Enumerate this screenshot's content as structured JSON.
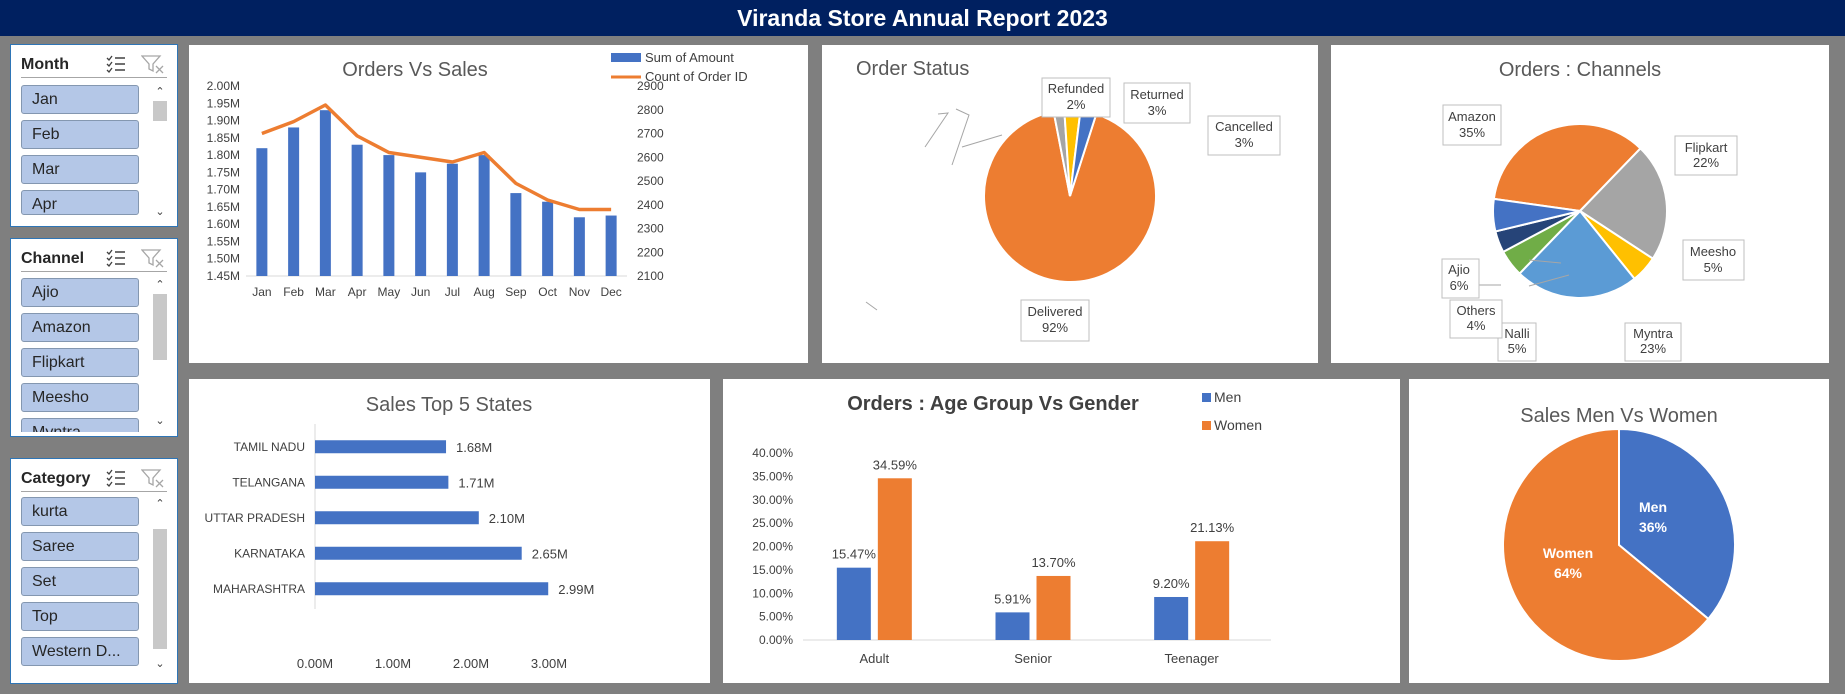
{
  "report_title": "Viranda Store Annual Report 2023",
  "slicers": {
    "month": {
      "label": "Month",
      "items": [
        "Jan",
        "Feb",
        "Mar",
        "Apr"
      ]
    },
    "channel": {
      "label": "Channel",
      "items": [
        "Ajio",
        "Amazon",
        "Flipkart",
        "Meesho",
        "Myntra"
      ]
    },
    "category": {
      "label": "Category",
      "items": [
        "kurta",
        "Saree",
        "Set",
        "Top",
        "Western D..."
      ]
    }
  },
  "colors": {
    "blue": "#4472c4",
    "orange": "#ed7d31",
    "gray": "#a5a5a5",
    "yellow": "#ffc000",
    "lightblue": "#5b9bd5",
    "green": "#70ad47",
    "navy": "#264478",
    "header": "#002060"
  },
  "chart_data": [
    {
      "id": "orders_vs_sales",
      "type": "bar+line",
      "title": "Orders Vs Sales",
      "categories": [
        "Jan",
        "Feb",
        "Mar",
        "Apr",
        "May",
        "Jun",
        "Jul",
        "Aug",
        "Sep",
        "Oct",
        "Nov",
        "Dec"
      ],
      "series": [
        {
          "name": "Sum of Amount",
          "axis": "left",
          "values": [
            1.82,
            1.88,
            1.93,
            1.83,
            1.8,
            1.75,
            1.775,
            1.8,
            1.69,
            1.665,
            1.62,
            1.625
          ]
        },
        {
          "name": "Count of Order ID",
          "axis": "right",
          "values": [
            2700,
            2750,
            2820,
            2690,
            2620,
            2600,
            2580,
            2620,
            2490,
            2420,
            2380,
            2380
          ]
        }
      ],
      "y_left": {
        "min": 1.45,
        "max": 2.0,
        "step": 0.05,
        "ticks": [
          "1.45M",
          "1.50M",
          "1.55M",
          "1.60M",
          "1.65M",
          "1.70M",
          "1.75M",
          "1.80M",
          "1.85M",
          "1.90M",
          "1.95M",
          "2.00M"
        ]
      },
      "y_right": {
        "min": 2100,
        "max": 2900,
        "step": 100,
        "ticks": [
          "2100",
          "2200",
          "2300",
          "2400",
          "2500",
          "2600",
          "2700",
          "2800",
          "2900"
        ]
      },
      "legend": "top-right"
    },
    {
      "id": "order_status",
      "type": "pie",
      "title": "Order Status",
      "slices": [
        {
          "name": "Delivered",
          "percent": 92,
          "label": "92%"
        },
        {
          "name": "Refunded",
          "percent": 2,
          "label": "2%"
        },
        {
          "name": "Returned",
          "percent": 3,
          "label": "3%"
        },
        {
          "name": "Cancelled",
          "percent": 3,
          "label": "3%"
        }
      ]
    },
    {
      "id": "orders_channels",
      "type": "pie",
      "title": "Orders : Channels",
      "slices": [
        {
          "name": "Amazon",
          "percent": 35,
          "label": "35%"
        },
        {
          "name": "Flipkart",
          "percent": 22,
          "label": "22%"
        },
        {
          "name": "Meesho",
          "percent": 5,
          "label": "5%"
        },
        {
          "name": "Myntra",
          "percent": 23,
          "label": "23%"
        },
        {
          "name": "Nalli",
          "percent": 5,
          "label": "5%"
        },
        {
          "name": "Others",
          "percent": 4,
          "label": "4%"
        },
        {
          "name": "Ajio",
          "percent": 6,
          "label": "6%"
        }
      ]
    },
    {
      "id": "sales_top5_states",
      "type": "bar",
      "orientation": "horizontal",
      "title": "Sales Top 5 States",
      "categories": [
        "TAMIL NADU",
        "TELANGANA",
        "UTTAR PRADESH",
        "KARNATAKA",
        "MAHARASHTRA"
      ],
      "values": [
        1.68,
        1.71,
        2.1,
        2.65,
        2.99
      ],
      "data_labels": [
        "1.68M",
        "1.71M",
        "2.10M",
        "2.65M",
        "2.99M"
      ],
      "xlim": [
        0,
        3.0
      ],
      "x_ticks": [
        "0.00M",
        "1.00M",
        "2.00M",
        "3.00M"
      ]
    },
    {
      "id": "age_group_gender",
      "type": "bar",
      "title": "Orders : Age Group Vs Gender",
      "categories": [
        "Adult",
        "Senior",
        "Teenager"
      ],
      "series": [
        {
          "name": "Men",
          "values": [
            15.47,
            5.91,
            9.2
          ],
          "labels": [
            "15.47%",
            "5.91%",
            "9.20%"
          ]
        },
        {
          "name": "Women",
          "values": [
            34.59,
            13.7,
            21.13
          ],
          "labels": [
            "34.59%",
            "13.70%",
            "21.13%"
          ]
        }
      ],
      "ylim": [
        0,
        40
      ],
      "y_ticks": [
        "0.00%",
        "5.00%",
        "10.00%",
        "15.00%",
        "20.00%",
        "25.00%",
        "30.00%",
        "35.00%",
        "40.00%"
      ],
      "legend": "top-right"
    },
    {
      "id": "sales_men_women",
      "type": "pie",
      "title": "Sales Men Vs Women",
      "slices": [
        {
          "name": "Men",
          "percent": 36,
          "label": "36%"
        },
        {
          "name": "Women",
          "percent": 64,
          "label": "64%"
        }
      ]
    }
  ]
}
